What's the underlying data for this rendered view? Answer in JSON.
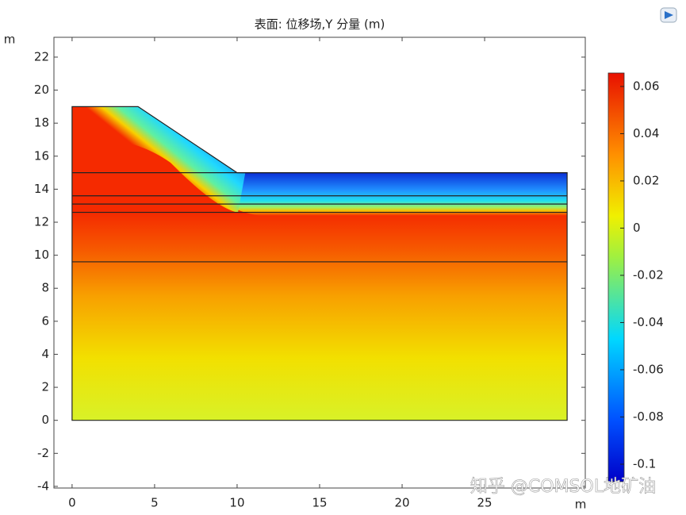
{
  "chart_data": {
    "type": "surface",
    "title": "表面: 位移场,Y 分量 (m)",
    "x_label": "m",
    "y_label": "m",
    "xlim": [
      -1.1,
      31.1
    ],
    "ylim": [
      -4.1,
      23.2
    ],
    "xticks": [
      0,
      5,
      10,
      15,
      20,
      25
    ],
    "yticks": [
      -4,
      -2,
      0,
      2,
      4,
      6,
      8,
      10,
      12,
      14,
      16,
      18,
      20,
      22
    ],
    "boundary": {
      "x": [
        0,
        0,
        4,
        10,
        30,
        30
      ],
      "y": [
        0,
        19,
        19,
        15,
        15,
        0
      ]
    },
    "layer_lines": [
      15,
      13.6,
      13.1,
      12.6,
      9.6
    ],
    "colorbar": {
      "clim": [
        -0.1074,
        0.0657
      ],
      "ticks": [
        0.06,
        0.04,
        0.02,
        0,
        -0.02,
        -0.04,
        -0.06,
        -0.08,
        -0.1
      ]
    },
    "watermark": "知乎 @COMSOL地矿油"
  }
}
